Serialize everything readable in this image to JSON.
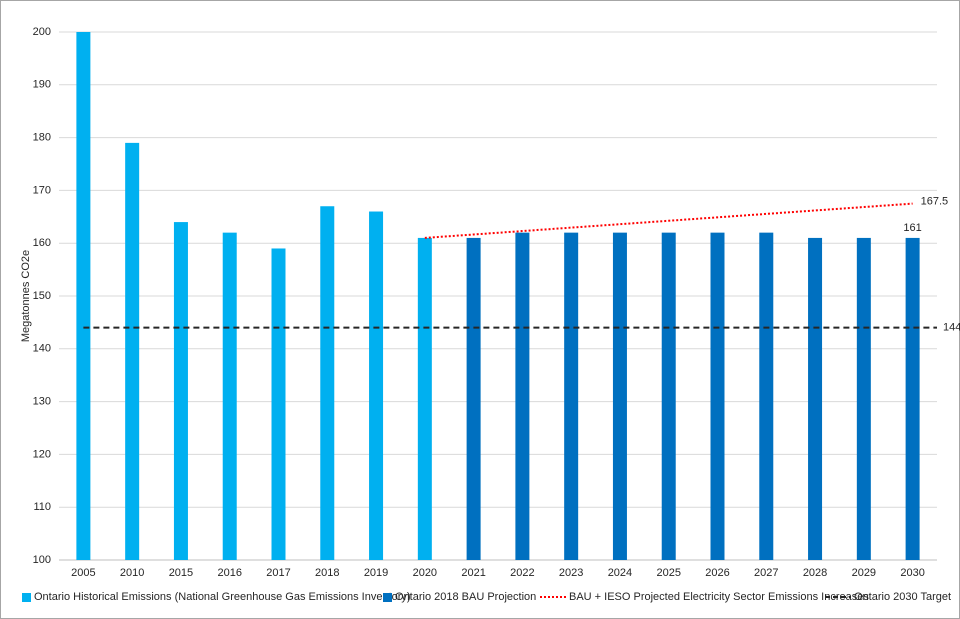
{
  "chart_data": {
    "type": "bar",
    "y_label": "Megatonnes CO2e",
    "categories": [
      "2005",
      "2010",
      "2015",
      "2016",
      "2017",
      "2018",
      "2019",
      "2020",
      "2021",
      "2022",
      "2023",
      "2024",
      "2025",
      "2026",
      "2027",
      "2028",
      "2029",
      "2030"
    ],
    "series": [
      {
        "name": "Ontario Historical Emissions (National Greenhouse Gas Emissions Inventory)",
        "type": "bar",
        "color": "#00b0f0",
        "values": [
          200,
          179,
          164,
          162,
          159,
          167,
          166,
          161,
          null,
          null,
          null,
          null,
          null,
          null,
          null,
          null,
          null,
          null
        ]
      },
      {
        "name": "Ontario 2018 BAU Projection",
        "type": "bar",
        "color": "#0070c0",
        "values": [
          null,
          null,
          null,
          null,
          null,
          null,
          null,
          null,
          161,
          162,
          162,
          162,
          162,
          162,
          162,
          161,
          161,
          161
        ]
      },
      {
        "name": "BAU + IESO Projected Electricity Sector Emissions Increases",
        "type": "line",
        "style": "dotted",
        "color": "#ff0000",
        "values": [
          null,
          null,
          null,
          null,
          null,
          null,
          null,
          161,
          161.65,
          162.3,
          162.95,
          163.6,
          164.25,
          164.9,
          165.55,
          166.2,
          166.85,
          167.5
        ]
      },
      {
        "name": "Ontario 2030 Target",
        "type": "line",
        "style": "dashed",
        "color": "#262626",
        "values": [
          144,
          144,
          144,
          144,
          144,
          144,
          144,
          144,
          144,
          144,
          144,
          144,
          144,
          144,
          144,
          144,
          144,
          144
        ]
      }
    ],
    "ylim": [
      100,
      200
    ],
    "yticks": [
      100,
      110,
      120,
      130,
      140,
      150,
      160,
      170,
      180,
      190,
      200
    ],
    "grid": true
  }
}
